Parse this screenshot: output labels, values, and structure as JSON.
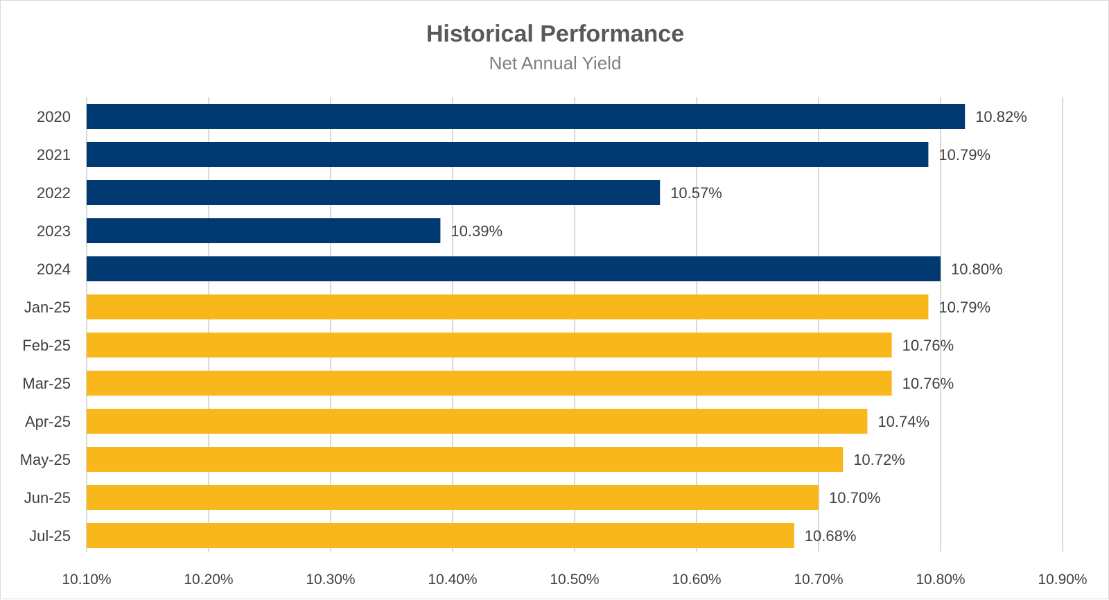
{
  "chart_data": {
    "type": "bar",
    "orientation": "horizontal",
    "title": "Historical Performance",
    "subtitle": "Net Annual Yield",
    "categories": [
      "2020",
      "2021",
      "2022",
      "2023",
      "2024",
      "Jan-25",
      "Feb-25",
      "Mar-25",
      "Apr-25",
      "May-25",
      "Jun-25",
      "Jul-25"
    ],
    "values": [
      10.82,
      10.79,
      10.57,
      10.39,
      10.8,
      10.79,
      10.76,
      10.76,
      10.74,
      10.72,
      10.7,
      10.68
    ],
    "data_labels": [
      "10.82%",
      "10.79%",
      "10.57%",
      "10.39%",
      "10.80%",
      "10.79%",
      "10.76%",
      "10.76%",
      "10.74%",
      "10.72%",
      "10.70%",
      "10.68%"
    ],
    "bar_colors": [
      "#003a70",
      "#003a70",
      "#003a70",
      "#003a70",
      "#003a70",
      "#f8b71a",
      "#f8b71a",
      "#f8b71a",
      "#f8b71a",
      "#f8b71a",
      "#f8b71a",
      "#f8b71a"
    ],
    "xlim": [
      10.1,
      10.9
    ],
    "x_ticks": [
      10.1,
      10.2,
      10.3,
      10.4,
      10.5,
      10.6,
      10.7,
      10.8,
      10.9
    ],
    "x_tick_labels": [
      "10.10%",
      "10.20%",
      "10.30%",
      "10.40%",
      "10.50%",
      "10.60%",
      "10.70%",
      "10.80%",
      "10.90%"
    ],
    "xlabel": "",
    "ylabel": "",
    "grid": "vertical",
    "legend": "none"
  }
}
